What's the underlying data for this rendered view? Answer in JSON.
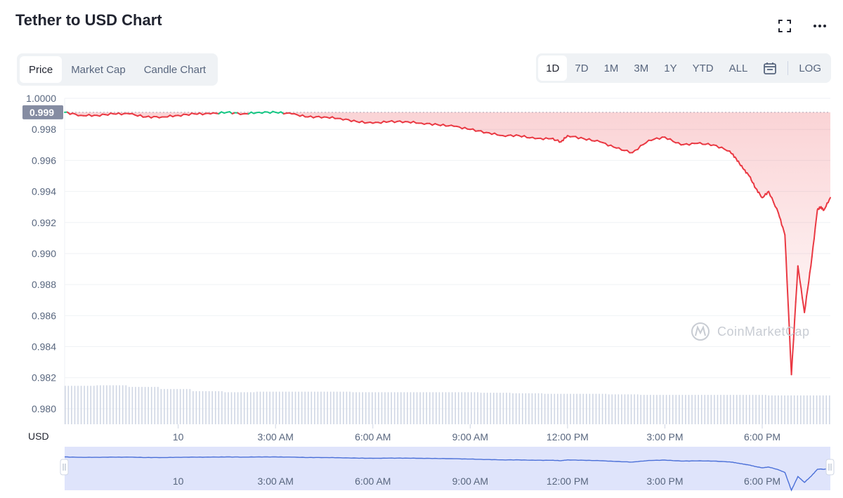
{
  "header": {
    "title": "Tether to USD Chart"
  },
  "icons": {
    "fullscreen": "fullscreen-icon",
    "more": "more-dots-icon",
    "calendar": "calendar-icon",
    "watermark": "coinmarketcap-logo-icon"
  },
  "tabs": [
    {
      "label": "Price",
      "active": true
    },
    {
      "label": "Market Cap",
      "active": false
    },
    {
      "label": "Candle Chart",
      "active": false
    }
  ],
  "ranges": [
    {
      "label": "1D",
      "active": true
    },
    {
      "label": "7D",
      "active": false
    },
    {
      "label": "1M",
      "active": false
    },
    {
      "label": "3M",
      "active": false
    },
    {
      "label": "1Y",
      "active": false
    },
    {
      "label": "YTD",
      "active": false
    },
    {
      "label": "ALL",
      "active": false
    }
  ],
  "log_label": "LOG",
  "watermark": "CoinMarketCap",
  "colors": {
    "up": "#16c784",
    "down": "#ea3943",
    "volume": "#cfd6e4",
    "navigator_fill": "#dfe4fb",
    "navigator_line": "#4a6fd8",
    "price_tag": "#858ca2"
  },
  "chart_data": {
    "type": "line",
    "ylabel": "USD",
    "ylim": [
      0.979,
      1.0
    ],
    "yticks": [
      "1.0000",
      "0.998",
      "0.996",
      "0.994",
      "0.992",
      "0.990",
      "0.988",
      "0.986",
      "0.984",
      "0.982",
      "0.980"
    ],
    "ytick_values": [
      1.0,
      0.998,
      0.996,
      0.994,
      0.992,
      0.99,
      0.988,
      0.986,
      0.984,
      0.982,
      0.98
    ],
    "current_price_label": "0.999",
    "current_price_value": 0.9991,
    "xlim": [
      -3.5,
      20.1
    ],
    "xticks": [
      {
        "label": "10",
        "value": 0
      },
      {
        "label": "3:00 AM",
        "value": 3
      },
      {
        "label": "6:00 AM",
        "value": 6
      },
      {
        "label": "9:00 AM",
        "value": 9
      },
      {
        "label": "12:00 PM",
        "value": 12
      },
      {
        "label": "3:00 PM",
        "value": 15
      },
      {
        "label": "6:00 PM",
        "value": 18
      }
    ],
    "series": [
      {
        "x": [
          -3.5,
          -3.0,
          -2.5,
          -2.0,
          -1.5,
          -1.0,
          -0.5,
          0.0,
          0.5,
          1.0,
          1.5,
          2.0,
          2.5,
          3.0,
          3.5,
          4.0,
          4.5,
          5.0,
          5.5,
          6.0,
          6.5,
          7.0,
          7.5,
          8.0,
          8.5,
          9.0,
          9.5,
          10.0,
          10.5,
          11.0,
          11.5,
          11.8,
          12.0,
          12.5,
          13.0,
          13.5,
          14.0,
          14.5,
          15.0,
          15.5,
          16.0,
          16.5,
          17.0,
          17.2,
          17.4,
          17.6,
          17.8,
          18.0,
          18.2,
          18.5,
          18.7,
          18.9,
          19.1,
          19.3,
          19.5,
          19.7,
          19.8,
          19.9,
          20.1
        ],
        "y": [
          0.9991,
          0.9989,
          0.9989,
          0.999,
          0.999,
          0.9988,
          0.9988,
          0.9989,
          0.999,
          0.999,
          0.9991,
          0.999,
          0.9991,
          0.9991,
          0.999,
          0.9988,
          0.9988,
          0.9987,
          0.9985,
          0.9984,
          0.9985,
          0.9985,
          0.9984,
          0.9983,
          0.9982,
          0.998,
          0.9978,
          0.9976,
          0.9976,
          0.9974,
          0.9974,
          0.9972,
          0.9976,
          0.9974,
          0.9972,
          0.9968,
          0.9965,
          0.9973,
          0.9975,
          0.997,
          0.9971,
          0.997,
          0.9966,
          0.9961,
          0.9955,
          0.995,
          0.9942,
          0.9936,
          0.994,
          0.9926,
          0.9912,
          0.9822,
          0.9892,
          0.9862,
          0.9892,
          0.9928,
          0.993,
          0.9928,
          0.9936
        ]
      }
    ],
    "volume": {
      "x_start": -3.5,
      "x_end": 20.1,
      "values": [
        0.72,
        0.73,
        0.7,
        0.66,
        0.62,
        0.6,
        0.61,
        0.61,
        0.61,
        0.6,
        0.6,
        0.6,
        0.6,
        0.59,
        0.58,
        0.57,
        0.57,
        0.56,
        0.55,
        0.55,
        0.55,
        0.55,
        0.54,
        0.54
      ]
    },
    "grid": true,
    "legend": "none"
  }
}
